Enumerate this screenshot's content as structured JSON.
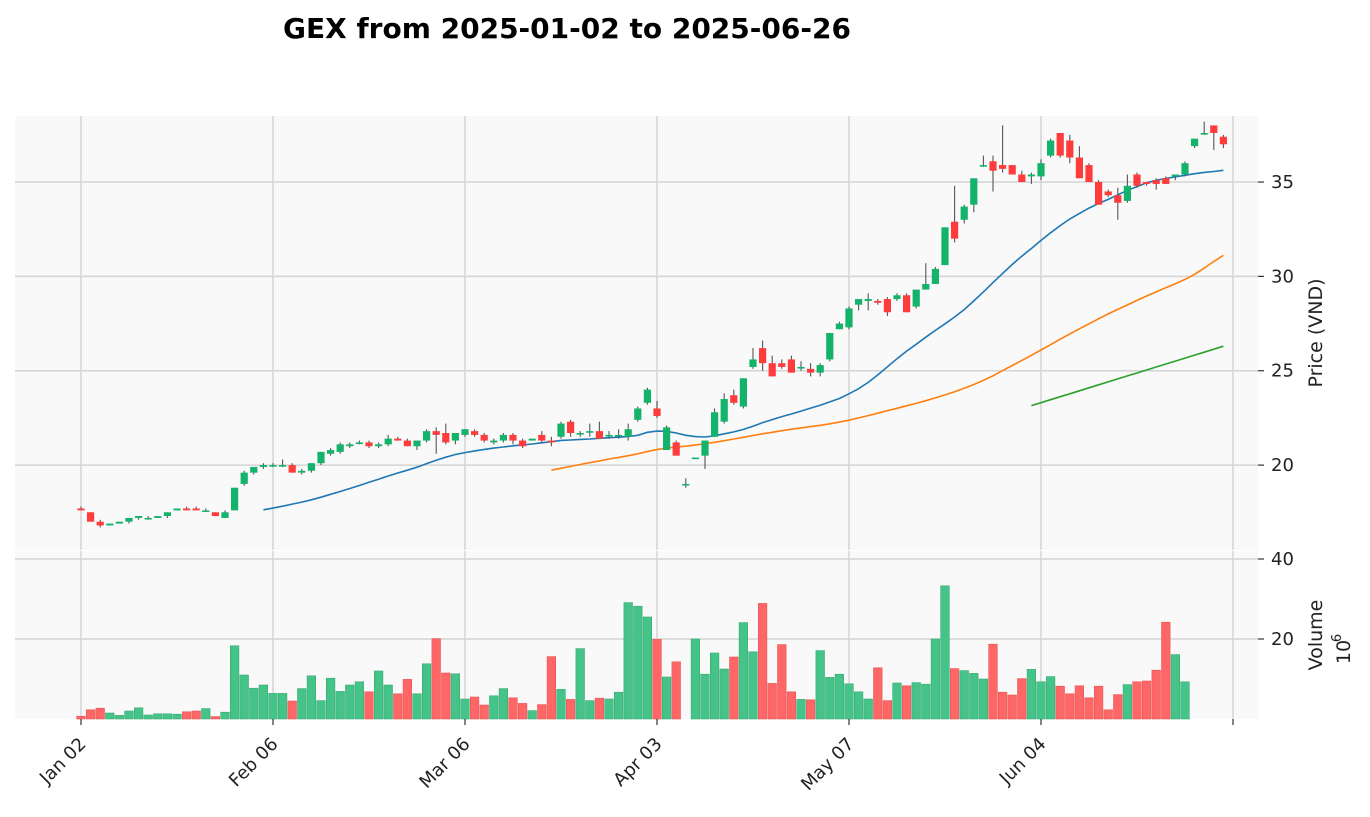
{
  "chart_data": {
    "type": "candlestick",
    "title": "GEX from 2025-01-02 to 2025-06-26",
    "ylabel_price": "Price (VND)",
    "ylabel_volume": "Volume",
    "volume_multiplier_label": "10",
    "volume_multiplier_exp": "6",
    "price_ylim": [
      15.5,
      38.5
    ],
    "price_ticks": [
      20,
      25,
      30,
      35
    ],
    "volume_ylim": [
      0,
      42
    ],
    "volume_ticks": [
      20,
      40
    ],
    "x_ticks": [
      {
        "label": "Jan 02",
        "index": 0
      },
      {
        "label": "Feb 06",
        "index": 20
      },
      {
        "label": "Mar 06",
        "index": 40
      },
      {
        "label": "Apr 03",
        "index": 60
      },
      {
        "label": "May 07",
        "index": 80
      },
      {
        "label": "Jun 04",
        "index": 100
      }
    ],
    "n_sessions": 120,
    "colors": {
      "up": "#13b36b",
      "down": "#ff3c3c",
      "vol_up": "#45c489",
      "vol_down": "#ff6666",
      "ma20": "#1f77b4",
      "ma50": "#ff7f0e",
      "ma100": "#2ca02c",
      "grid": "#d4d4d4",
      "panel_bg": "#f9f9f9"
    },
    "grid": true,
    "candles": [
      [
        17.7,
        17.8,
        17.6,
        17.6
      ],
      [
        17.5,
        17.5,
        17.0,
        17.0
      ],
      [
        17.0,
        17.1,
        16.7,
        16.8
      ],
      [
        16.8,
        16.9,
        16.8,
        16.9
      ],
      [
        16.9,
        17.0,
        16.9,
        17.0
      ],
      [
        17.0,
        17.2,
        16.9,
        17.2
      ],
      [
        17.2,
        17.3,
        17.1,
        17.3
      ],
      [
        17.2,
        17.3,
        17.1,
        17.2
      ],
      [
        17.2,
        17.3,
        17.2,
        17.3
      ],
      [
        17.3,
        17.5,
        17.2,
        17.5
      ],
      [
        17.6,
        17.7,
        17.6,
        17.7
      ],
      [
        17.7,
        17.8,
        17.6,
        17.6
      ],
      [
        17.7,
        17.8,
        17.6,
        17.6
      ],
      [
        17.6,
        17.7,
        17.6,
        17.6
      ],
      [
        17.5,
        17.5,
        17.3,
        17.3
      ],
      [
        17.2,
        17.6,
        17.2,
        17.5
      ],
      [
        17.6,
        18.8,
        17.6,
        18.8
      ],
      [
        19.0,
        19.7,
        18.9,
        19.6
      ],
      [
        19.6,
        19.9,
        19.5,
        19.9
      ],
      [
        19.9,
        20.1,
        19.8,
        20.0
      ],
      [
        20.0,
        20.1,
        19.9,
        20.0
      ],
      [
        20.0,
        20.3,
        19.9,
        20.0
      ],
      [
        20.0,
        20.1,
        19.6,
        19.6
      ],
      [
        19.6,
        19.8,
        19.5,
        19.7
      ],
      [
        19.7,
        20.1,
        19.6,
        20.1
      ],
      [
        20.1,
        20.7,
        20.0,
        20.7
      ],
      [
        20.6,
        20.9,
        20.5,
        20.8
      ],
      [
        20.7,
        21.2,
        20.6,
        21.1
      ],
      [
        21.0,
        21.2,
        20.9,
        21.1
      ],
      [
        21.2,
        21.3,
        21.1,
        21.2
      ],
      [
        21.2,
        21.3,
        20.9,
        21.0
      ],
      [
        21.0,
        21.2,
        20.9,
        21.1
      ],
      [
        21.1,
        21.6,
        21.0,
        21.4
      ],
      [
        21.4,
        21.5,
        21.3,
        21.3
      ],
      [
        21.3,
        21.4,
        21.0,
        21.0
      ],
      [
        21.0,
        21.3,
        20.8,
        21.3
      ],
      [
        21.3,
        21.9,
        21.2,
        21.8
      ],
      [
        21.8,
        22.0,
        20.6,
        21.6
      ],
      [
        21.7,
        22.2,
        21.1,
        21.2
      ],
      [
        21.3,
        21.7,
        21.1,
        21.7
      ],
      [
        21.6,
        21.9,
        21.5,
        21.9
      ],
      [
        21.8,
        21.9,
        21.5,
        21.6
      ],
      [
        21.6,
        21.7,
        21.2,
        21.3
      ],
      [
        21.2,
        21.4,
        21.1,
        21.3
      ],
      [
        21.3,
        21.7,
        21.2,
        21.6
      ],
      [
        21.6,
        21.7,
        21.1,
        21.3
      ],
      [
        21.3,
        21.4,
        20.9,
        21.0
      ],
      [
        21.3,
        21.4,
        21.3,
        21.4
      ],
      [
        21.6,
        21.8,
        21.2,
        21.3
      ],
      [
        21.3,
        21.5,
        21.0,
        21.2
      ],
      [
        21.5,
        22.3,
        21.4,
        22.2
      ],
      [
        22.3,
        22.4,
        21.5,
        21.7
      ],
      [
        21.7,
        21.8,
        21.5,
        21.7
      ],
      [
        21.8,
        22.2,
        21.5,
        21.8
      ],
      [
        21.8,
        22.3,
        21.4,
        21.4
      ],
      [
        21.6,
        21.8,
        21.4,
        21.6
      ],
      [
        21.6,
        21.9,
        21.4,
        21.6
      ],
      [
        21.5,
        22.2,
        21.3,
        21.9
      ],
      [
        22.4,
        23.1,
        22.3,
        23.0
      ],
      [
        23.3,
        24.1,
        23.2,
        24.0
      ],
      [
        23.0,
        23.4,
        22.5,
        22.6
      ],
      [
        20.8,
        22.1,
        20.8,
        22.0
      ],
      [
        21.2,
        21.3,
        20.5,
        20.5
      ],
      [
        19.0,
        19.3,
        18.8,
        19.0
      ],
      [
        20.4,
        20.4,
        20.4,
        20.4
      ],
      [
        20.5,
        21.3,
        19.8,
        21.3
      ],
      [
        21.5,
        23.0,
        21.5,
        22.8
      ],
      [
        22.3,
        23.8,
        22.2,
        23.5
      ],
      [
        23.7,
        24.0,
        23.2,
        23.3
      ],
      [
        23.1,
        24.6,
        23.0,
        24.6
      ],
      [
        25.2,
        26.2,
        25.1,
        25.6
      ],
      [
        26.2,
        26.6,
        25.0,
        25.4
      ],
      [
        25.4,
        25.8,
        24.7,
        24.7
      ],
      [
        25.4,
        25.6,
        25.1,
        25.2
      ],
      [
        25.6,
        25.8,
        24.9,
        24.9
      ],
      [
        25.2,
        25.5,
        25.0,
        25.2
      ],
      [
        25.1,
        25.4,
        24.7,
        24.9
      ],
      [
        24.9,
        25.4,
        24.7,
        25.3
      ],
      [
        25.6,
        27.0,
        25.5,
        27.0
      ],
      [
        27.2,
        27.6,
        27.2,
        27.5
      ],
      [
        27.3,
        28.4,
        27.2,
        28.3
      ],
      [
        28.5,
        28.8,
        28.2,
        28.8
      ],
      [
        28.7,
        29.1,
        28.2,
        28.8
      ],
      [
        28.7,
        28.8,
        28.5,
        28.6
      ],
      [
        28.8,
        28.9,
        27.9,
        28.1
      ],
      [
        28.8,
        29.1,
        28.7,
        29.0
      ],
      [
        29.0,
        29.1,
        28.1,
        28.1
      ],
      [
        28.4,
        29.3,
        28.3,
        29.3
      ],
      [
        29.3,
        30.7,
        29.4,
        29.6
      ],
      [
        29.6,
        30.5,
        29.6,
        30.4
      ],
      [
        30.6,
        32.6,
        30.6,
        32.6
      ],
      [
        32.9,
        34.8,
        31.8,
        32.0
      ],
      [
        33.0,
        33.8,
        32.8,
        33.7
      ],
      [
        33.8,
        35.2,
        33.4,
        35.2
      ],
      [
        35.9,
        36.4,
        35.8,
        35.9
      ],
      [
        36.1,
        36.4,
        34.5,
        35.6
      ],
      [
        35.9,
        38.0,
        35.5,
        35.7
      ],
      [
        35.9,
        35.9,
        35.4,
        35.4
      ],
      [
        35.4,
        35.6,
        35.0,
        35.0
      ],
      [
        35.3,
        35.5,
        34.9,
        35.4
      ],
      [
        35.3,
        36.2,
        35.1,
        36.0
      ],
      [
        36.4,
        37.3,
        36.3,
        37.2
      ],
      [
        37.6,
        37.6,
        36.3,
        36.4
      ],
      [
        37.2,
        37.5,
        36.0,
        36.3
      ],
      [
        36.3,
        36.9,
        35.3,
        35.2
      ],
      [
        35.9,
        36.0,
        35.0,
        35.0
      ],
      [
        35.0,
        35.1,
        33.8,
        33.8
      ],
      [
        34.5,
        34.6,
        34.2,
        34.3
      ],
      [
        34.3,
        34.7,
        33.0,
        33.9
      ],
      [
        34.0,
        35.4,
        33.9,
        34.8
      ],
      [
        35.4,
        35.5,
        34.7,
        34.8
      ],
      [
        35.0,
        35.0,
        34.8,
        34.9
      ],
      [
        35.1,
        35.2,
        34.6,
        34.9
      ],
      [
        35.2,
        35.3,
        34.9,
        34.9
      ],
      [
        35.3,
        35.4,
        35.1,
        35.4
      ],
      [
        35.4,
        36.1,
        35.3,
        36.0
      ],
      [
        36.9,
        37.3,
        36.8,
        37.3
      ],
      [
        37.6,
        38.2,
        37.5,
        37.6
      ],
      [
        38.0,
        38.0,
        36.7,
        37.6
      ],
      [
        37.4,
        37.5,
        36.8,
        37.0
      ]
    ],
    "volumes": [
      0.7,
      2.3,
      2.7,
      1.5,
      0.9,
      2.0,
      2.8,
      1.0,
      1.3,
      1.3,
      1.2,
      1.8,
      2.0,
      2.6,
      0.6,
      1.7,
      18.3,
      11.0,
      7.7,
      8.5,
      6.4,
      6.4,
      4.5,
      7.6,
      10.8,
      4.6,
      10.2,
      6.9,
      8.5,
      9.3,
      6.8,
      12.0,
      8.5,
      6.3,
      9.9,
      6.3,
      13.8,
      20.1,
      11.5,
      11.3,
      5.0,
      5.5,
      3.5,
      5.8,
      7.6,
      5.3,
      3.9,
      2.1,
      3.6,
      15.6,
      7.4,
      4.9,
      17.6,
      4.6,
      5.2,
      5.0,
      6.7,
      29.1,
      28.2,
      25.5,
      19.9,
      10.5,
      14.3,
      0.0,
      20.0,
      11.2,
      16.5,
      12.5,
      15.5,
      24.1,
      16.8,
      28.9,
      8.9,
      18.6,
      6.8,
      4.9,
      4.8,
      17.1,
      10.4,
      11.2,
      8.8,
      6.8,
      5.0,
      12.8,
      4.6,
      9.0,
      8.3,
      9.1,
      8.7,
      20.0,
      33.3,
      12.6,
      12.1,
      11.4,
      10.0,
      18.7,
      6.7,
      6.0,
      10.1,
      12.4,
      9.3,
      10.6,
      8.2,
      6.3,
      8.3,
      5.3,
      8.2,
      2.3,
      6.1,
      8.6,
      9.3,
      9.5,
      12.2,
      24.2,
      16.1,
      9.3,
      0,
      0,
      0,
      0
    ],
    "ma20": [
      null,
      null,
      null,
      null,
      null,
      null,
      null,
      null,
      null,
      null,
      null,
      null,
      null,
      null,
      null,
      null,
      null,
      null,
      null,
      17.63,
      17.72,
      17.82,
      17.93,
      18.04,
      18.16,
      18.3,
      18.45,
      18.6,
      18.76,
      18.92,
      19.09,
      19.25,
      19.42,
      19.58,
      19.73,
      19.89,
      20.08,
      20.26,
      20.42,
      20.56,
      20.66,
      20.75,
      20.83,
      20.9,
      20.96,
      21.02,
      21.07,
      21.12,
      21.18,
      21.24,
      21.31,
      21.33,
      21.36,
      21.38,
      21.42,
      21.45,
      21.48,
      21.51,
      21.58,
      21.74,
      21.8,
      21.79,
      21.7,
      21.58,
      21.51,
      21.49,
      21.55,
      21.66,
      21.76,
      21.89,
      22.06,
      22.25,
      22.41,
      22.57,
      22.71,
      22.86,
      23.02,
      23.17,
      23.35,
      23.53,
      23.78,
      24.05,
      24.38,
      24.78,
      25.21,
      25.64,
      26.04,
      26.4,
      26.78,
      27.14,
      27.49,
      27.85,
      28.24,
      28.7,
      29.18,
      29.67,
      30.16,
      30.63,
      31.07,
      31.48,
      31.91,
      32.31,
      32.69,
      33.04,
      33.34,
      33.62,
      33.87,
      34.08,
      34.32,
      34.56,
      34.76,
      34.96,
      35.09,
      35.19,
      35.28,
      35.36,
      35.44,
      35.51,
      35.56,
      35.62
    ],
    "ma50": [
      null,
      null,
      null,
      null,
      null,
      null,
      null,
      null,
      null,
      null,
      null,
      null,
      null,
      null,
      null,
      null,
      null,
      null,
      null,
      null,
      null,
      null,
      null,
      null,
      null,
      null,
      null,
      null,
      null,
      null,
      null,
      null,
      null,
      null,
      null,
      null,
      null,
      null,
      null,
      null,
      null,
      null,
      null,
      null,
      null,
      null,
      null,
      null,
      null,
      19.73,
      19.83,
      19.93,
      20.03,
      20.13,
      20.22,
      20.32,
      20.41,
      20.5,
      20.6,
      20.72,
      20.82,
      20.9,
      20.96,
      21.0,
      21.07,
      21.13,
      21.21,
      21.29,
      21.38,
      21.47,
      21.57,
      21.66,
      21.74,
      21.82,
      21.9,
      21.97,
      22.04,
      22.11,
      22.19,
      22.28,
      22.38,
      22.5,
      22.62,
      22.75,
      22.88,
      23.01,
      23.14,
      23.27,
      23.41,
      23.56,
      23.72,
      23.89,
      24.07,
      24.27,
      24.49,
      24.73,
      25.01,
      25.28,
      25.55,
      25.82,
      26.1,
      26.38,
      26.67,
      26.95,
      27.22,
      27.49,
      27.75,
      28.01,
      28.25,
      28.49,
      28.73,
      28.96,
      29.18,
      29.4,
      29.61,
      29.84,
      30.11,
      30.44,
      30.79,
      31.12
    ],
    "ma100_start": 99,
    "ma100_end": 119,
    "ma100_values": [
      23.15,
      26.3
    ]
  }
}
